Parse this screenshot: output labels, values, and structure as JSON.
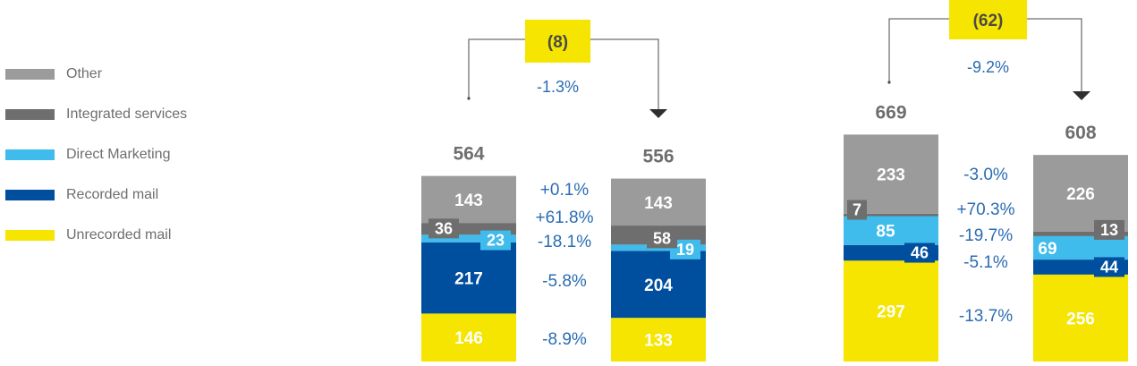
{
  "colors": {
    "other": "#9b9b9b",
    "integrated": "#6e6e6e",
    "direct": "#3fbbec",
    "recorded": "#004e9e",
    "unrecorded": "#f5e500",
    "change_text": "#2b6cb3",
    "total_text": "#6e6e6e"
  },
  "legend": [
    {
      "label": "Other",
      "color": "#9b9b9b"
    },
    {
      "label": "Integrated services",
      "color": "#6e6e6e"
    },
    {
      "label": "Direct Marketing",
      "color": "#3fbbec"
    },
    {
      "label": "Recorded mail",
      "color": "#004e9e"
    },
    {
      "label": "Unrecorded mail",
      "color": "#f5e500"
    }
  ],
  "chart_data": [
    {
      "type": "bar",
      "stacked": true,
      "categories": [
        "",
        ""
      ],
      "series": [
        {
          "name": "Unrecorded mail",
          "values": [
            146,
            133
          ]
        },
        {
          "name": "Recorded mail",
          "values": [
            217,
            204
          ]
        },
        {
          "name": "Direct Marketing",
          "values": [
            23,
            19
          ]
        },
        {
          "name": "Integrated services",
          "values": [
            36,
            58
          ]
        },
        {
          "name": "Other",
          "values": [
            143,
            143
          ]
        }
      ],
      "totals": [
        "564",
        "556"
      ],
      "change_badge": "(8)",
      "change_pct": "-1.3%",
      "segment_changes": [
        "-8.9%",
        "-5.8%",
        "-18.1%",
        "+61.8%",
        "+0.1%"
      ]
    },
    {
      "type": "bar",
      "stacked": true,
      "categories": [
        "",
        ""
      ],
      "series": [
        {
          "name": "Unrecorded mail",
          "values": [
            297,
            256
          ]
        },
        {
          "name": "Recorded mail",
          "values": [
            46,
            44
          ]
        },
        {
          "name": "Direct Marketing",
          "values": [
            85,
            69
          ]
        },
        {
          "name": "Integrated services",
          "values": [
            7,
            13
          ]
        },
        {
          "name": "Other",
          "values": [
            233,
            226
          ]
        }
      ],
      "totals": [
        "669",
        "608"
      ],
      "change_badge": "(62)",
      "change_pct": "-9.2%",
      "segment_changes": [
        "-13.7%",
        "-5.1%",
        "-19.7%",
        "+70.3%",
        "-3.0%"
      ]
    }
  ]
}
